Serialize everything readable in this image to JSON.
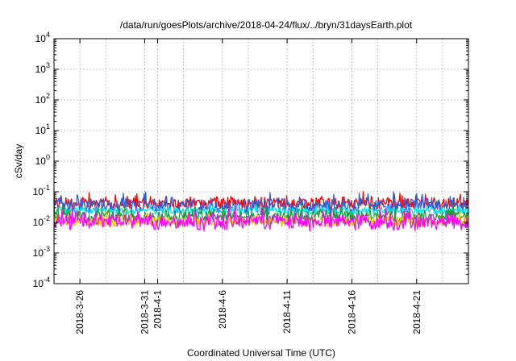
{
  "chart_data": {
    "type": "line",
    "title": "/data/run/goesPlots/archive/2018-04-24/flux/../bryn/31daysEarth.plot",
    "xlabel": "Coordinated Universal Time (UTC)",
    "ylabel": "cSv/day",
    "yscale": "log",
    "ylim": [
      0.0001,
      10000
    ],
    "y_ticks": [
      {
        "value": 0.0001,
        "base": "10",
        "exp": "-4"
      },
      {
        "value": 0.001,
        "base": "10",
        "exp": "-3"
      },
      {
        "value": 0.01,
        "base": "10",
        "exp": "-2"
      },
      {
        "value": 0.1,
        "base": "10",
        "exp": "-1"
      },
      {
        "value": 1,
        "base": "10",
        "exp": "0"
      },
      {
        "value": 10,
        "base": "10",
        "exp": "1"
      },
      {
        "value": 100,
        "base": "10",
        "exp": "2"
      },
      {
        "value": 1000,
        "base": "10",
        "exp": "3"
      },
      {
        "value": 10000,
        "base": "10",
        "exp": "4"
      }
    ],
    "xlim": [
      "2018-03-24",
      "2018-04-25"
    ],
    "x_ticks": [
      "2018-3-26",
      "2018-3-31",
      "2018-4-1",
      "2018-4-6",
      "2018-4-11",
      "2018-4-16",
      "2018-4-21"
    ],
    "x_tick_dates": [
      "2018-03-26",
      "2018-03-31",
      "2018-04-01",
      "2018-04-06",
      "2018-04-11",
      "2018-04-16",
      "2018-04-21"
    ],
    "x_grid_dates": [
      "2018-03-26",
      "2018-03-28",
      "2018-03-31",
      "2018-04-01",
      "2018-04-03",
      "2018-04-06",
      "2018-04-08",
      "2018-04-11",
      "2018-04-13",
      "2018-04-16",
      "2018-04-18",
      "2018-04-21",
      "2018-04-23"
    ],
    "grid": true,
    "series": [
      {
        "color": "#ff0000",
        "level": 0.042,
        "spread": 0.22
      },
      {
        "color": "#2f5fd8",
        "level": 0.035,
        "spread": 0.28
      },
      {
        "color": "#00e5e5",
        "level": 0.024,
        "spread": 0.12
      },
      {
        "color": "#1f9a3a",
        "level": 0.016,
        "spread": 0.22
      },
      {
        "color": "#e5c800",
        "level": 0.011,
        "spread": 0.2
      },
      {
        "color": "#ff00ff",
        "level": 0.0105,
        "spread": 0.28
      }
    ]
  }
}
